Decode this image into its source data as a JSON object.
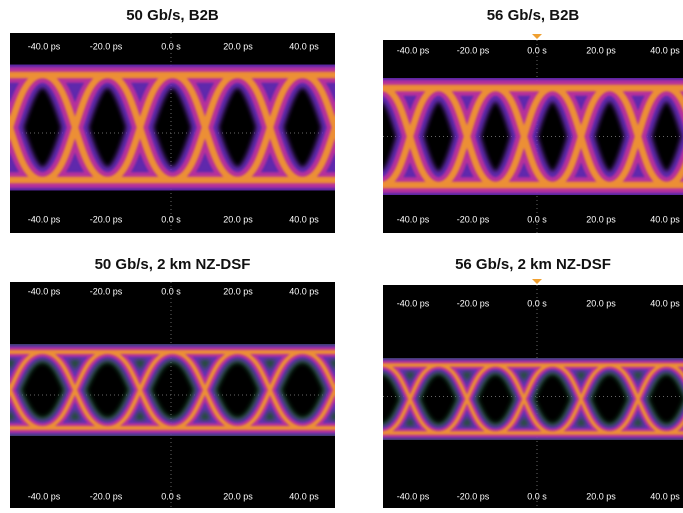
{
  "panels": [
    {
      "title": "50 Gb/s, B2B",
      "top_ticks": [
        "-40.0 ps",
        "-20.0 ps",
        "0.0 s",
        "20.0 ps",
        "40.0 ps"
      ],
      "bottom_ticks": [
        "-40.0 ps",
        "-20.0 ps",
        "0.0 s",
        "20.0 ps",
        "40.0 ps"
      ]
    },
    {
      "title": "56 Gb/s, B2B",
      "top_ticks": [
        "-40.0 ps",
        "-20.0 ps",
        "0.0 s",
        "20.0 ps",
        "40.0 ps"
      ],
      "bottom_ticks": [
        "-40.0 ps",
        "-20.0 ps",
        "0.0 s",
        "20.0 ps",
        "40.0 ps"
      ]
    },
    {
      "title": "50 Gb/s, 2 km NZ-DSF",
      "top_ticks": [
        "-40.0 ps",
        "-20.0 ps",
        "0.0 s",
        "20.0 ps",
        "40.0 ps"
      ],
      "bottom_ticks": [
        "-40.0 ps",
        "-20.0 ps",
        "0.0 s",
        "20.0 ps",
        "40.0 ps"
      ]
    },
    {
      "title": "56 Gb/s, 2 km NZ-DSF",
      "top_ticks": [
        "-40.0 ps",
        "-20.0 ps",
        "0.0 s",
        "20.0 ps",
        "40.0 ps"
      ],
      "bottom_ticks": [
        "-40.0 ps",
        "-20.0 ps",
        "0.0 s",
        "20.0 ps",
        "40.0 ps"
      ]
    }
  ]
}
